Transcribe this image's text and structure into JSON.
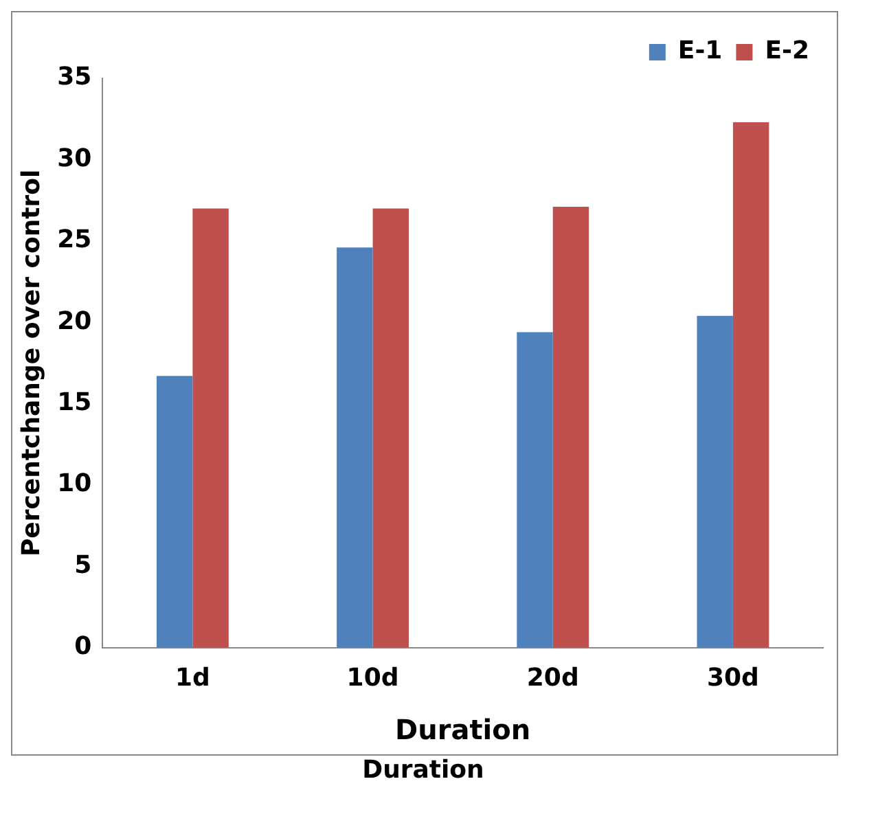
{
  "chart_data": {
    "type": "bar",
    "ylabel": "Percentchange over control",
    "xlabel": "Duration",
    "annotations": [
      "Duration"
    ],
    "categories": [
      "1d",
      "10d",
      "20d",
      "30d"
    ],
    "series": [
      {
        "name": "E-1",
        "color": "#4f81bd",
        "values": [
          16.7,
          24.6,
          19.4,
          20.4
        ]
      },
      {
        "name": "E-2",
        "color": "#c0504d",
        "values": [
          27.0,
          27.0,
          27.1,
          32.3
        ]
      }
    ],
    "ylim": [
      0,
      35
    ],
    "yticks": [
      0,
      5,
      10,
      15,
      20,
      25,
      30,
      35
    ],
    "grid": false,
    "legend": "top right"
  }
}
